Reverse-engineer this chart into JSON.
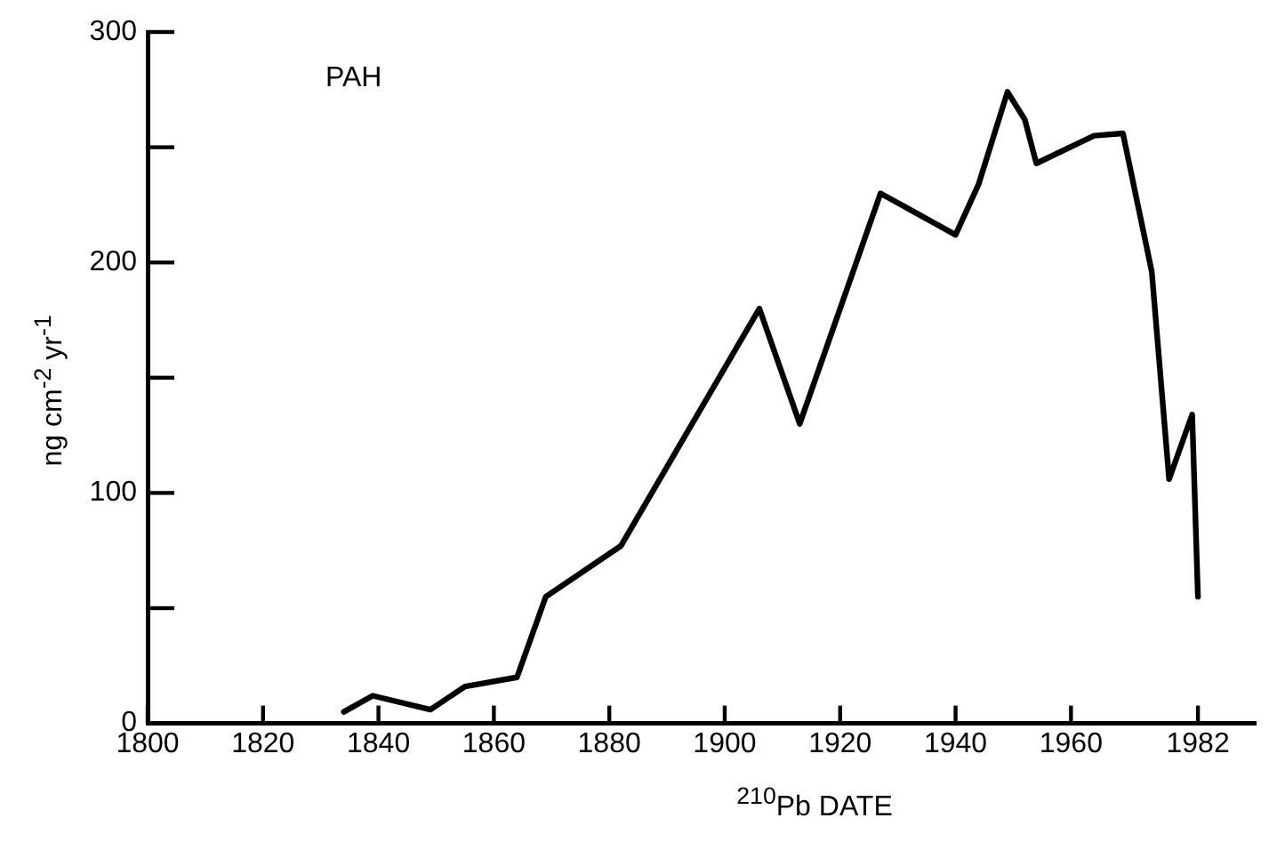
{
  "chart_data": {
    "type": "line",
    "xlabel": "$^{210}$Pb DATE",
    "ylabel": "ng cm$^{-2}$ yr$^{-1}$",
    "annotations": [
      "PAH"
    ],
    "x": [
      1834,
      1839,
      1849,
      1855,
      1864,
      1869,
      1882,
      1906,
      1913,
      1927,
      1940,
      1944,
      1949,
      1952,
      1954,
      1964,
      1969,
      1974,
      1977,
      1981,
      1982
    ],
    "series": [
      {
        "color": "#000000",
        "values": [
          5,
          12,
          6,
          16,
          20,
          55,
          77,
          180,
          130,
          230,
          212,
          234,
          274,
          262,
          243,
          255,
          256,
          196,
          106,
          134,
          55
        ]
      }
    ],
    "xlim": [
      1800,
      1992
    ],
    "xticks": [
      1800,
      1820,
      1840,
      1860,
      1880,
      1900,
      1920,
      1940,
      1960,
      1982
    ],
    "ylim": [
      0,
      300
    ],
    "yticks": [
      0,
      {
        "value": 50,
        "label": null
      },
      100,
      {
        "value": 150,
        "label": null
      },
      200,
      {
        "value": 250,
        "label": null
      },
      300
    ],
    "grid": false,
    "legend": false,
    "marker": "none",
    "line_style": "solid"
  }
}
